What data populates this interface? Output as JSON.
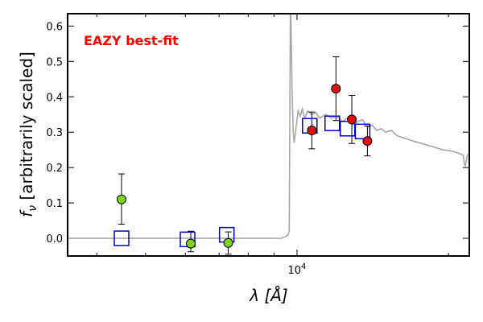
{
  "chart_data": {
    "type": "scatter",
    "title": "",
    "xlabel": "λ [Å]",
    "ylabel": "f_ν [arbitrarily scaled]",
    "ylabel_symbol": "f",
    "ylabel_subscript": "ν",
    "ylabel_text": " [arbitrarily scaled]",
    "xscale": "log",
    "xlim": [
      3500,
      22000
    ],
    "ylim": [
      -0.05,
      0.635
    ],
    "x_ticks": [
      {
        "value": 10000,
        "label": "10",
        "exp": "4"
      }
    ],
    "x_minor_ticks": [
      4000,
      5000,
      6000,
      7000,
      8000,
      9000,
      20000
    ],
    "y_ticks": [
      0.0,
      0.1,
      0.2,
      0.3,
      0.4,
      0.5,
      0.6
    ],
    "y_tick_labels": [
      "0.0",
      "0.1",
      "0.2",
      "0.3",
      "0.4",
      "0.5",
      "0.6"
    ],
    "annotation": {
      "text": "EAZY best-fit",
      "color": "#ff0000",
      "position": "top-left"
    },
    "grid": false,
    "series": [
      {
        "kind": "line",
        "color": "#a6a6a6",
        "points": [
          [
            3500,
            0.0
          ],
          [
            9300,
            0.0
          ],
          [
            9500,
            0.005
          ],
          [
            9600,
            0.01
          ],
          [
            9650,
            0.02
          ],
          [
            9700,
            0.63
          ],
          [
            9720,
            0.635
          ],
          [
            9780,
            0.41
          ],
          [
            9830,
            0.3
          ],
          [
            9870,
            0.27
          ],
          [
            9950,
            0.31
          ],
          [
            10050,
            0.36
          ],
          [
            10150,
            0.345
          ],
          [
            10250,
            0.365
          ],
          [
            10350,
            0.34
          ],
          [
            10500,
            0.36
          ],
          [
            10700,
            0.35
          ],
          [
            10900,
            0.355
          ],
          [
            11100,
            0.34
          ],
          [
            11400,
            0.35
          ],
          [
            11700,
            0.34
          ],
          [
            12000,
            0.345
          ],
          [
            12300,
            0.33
          ],
          [
            12600,
            0.34
          ],
          [
            12900,
            0.32
          ],
          [
            13200,
            0.33
          ],
          [
            13500,
            0.335
          ],
          [
            13800,
            0.315
          ],
          [
            14100,
            0.32
          ],
          [
            14400,
            0.305
          ],
          [
            14700,
            0.31
          ],
          [
            15000,
            0.3
          ],
          [
            15400,
            0.305
          ],
          [
            15800,
            0.29
          ],
          [
            16200,
            0.285
          ],
          [
            16600,
            0.28
          ],
          [
            17000,
            0.275
          ],
          [
            17500,
            0.27
          ],
          [
            18000,
            0.265
          ],
          [
            18500,
            0.26
          ],
          [
            19000,
            0.255
          ],
          [
            19500,
            0.25
          ],
          [
            20000,
            0.248
          ],
          [
            20500,
            0.245
          ],
          [
            21000,
            0.24
          ],
          [
            21400,
            0.235
          ],
          [
            21500,
            0.21
          ],
          [
            21600,
            0.205
          ],
          [
            21800,
            0.235
          ],
          [
            22000,
            0.238
          ]
        ]
      },
      {
        "kind": "open-squares",
        "color": "#0000cc",
        "points": [
          [
            4480,
            0.0
          ],
          [
            6060,
            -0.003
          ],
          [
            7250,
            0.01
          ],
          [
            10600,
            0.318
          ],
          [
            11750,
            0.325
          ],
          [
            12600,
            0.31
          ],
          [
            13500,
            0.302
          ]
        ]
      },
      {
        "kind": "errorbar-points",
        "color": "#7cd41e",
        "points": [
          {
            "x": 4480,
            "y": 0.11,
            "lo": 0.04,
            "hi": 0.182
          },
          {
            "x": 6150,
            "y": -0.015,
            "lo": -0.038,
            "hi": 0.02
          },
          {
            "x": 7300,
            "y": -0.013,
            "lo": -0.045,
            "hi": 0.018
          }
        ]
      },
      {
        "kind": "errorbar-points",
        "color": "#e01010",
        "points": [
          {
            "x": 10700,
            "y": 0.305,
            "lo": 0.253,
            "hi": 0.357
          },
          {
            "x": 11950,
            "y": 0.423,
            "lo": 0.333,
            "hi": 0.513
          },
          {
            "x": 12850,
            "y": 0.336,
            "lo": 0.268,
            "hi": 0.404
          },
          {
            "x": 13800,
            "y": 0.275,
            "lo": 0.233,
            "hi": 0.317
          }
        ]
      }
    ]
  }
}
